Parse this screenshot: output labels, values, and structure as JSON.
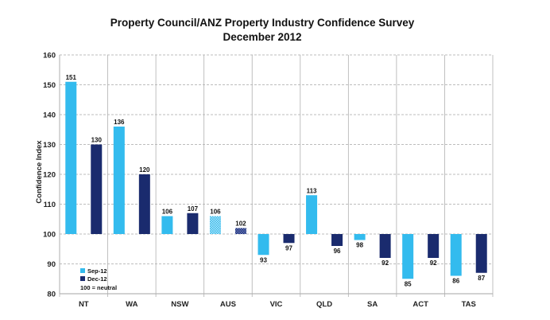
{
  "chart_data": {
    "type": "bar",
    "title": "Property Council/ANZ Property Industry Confidence Survey",
    "subtitle": "December 2012",
    "ylabel": "Confidence Index",
    "xlabel": "",
    "ylim": [
      80,
      160
    ],
    "yticks": [
      "80",
      "90",
      "100",
      "110",
      "120",
      "130",
      "140",
      "150",
      "160"
    ],
    "baseline": 100,
    "grid": true,
    "legend_position": "bottom-left",
    "legend_note": "100 = neutral",
    "categories": [
      "NT",
      "WA",
      "NSW",
      "AUS",
      "VIC",
      "QLD",
      "SA",
      "ACT",
      "TAS"
    ],
    "series": [
      {
        "name": "Sep-12",
        "color": "#33bbee",
        "values": [
          151,
          136,
          106,
          106,
          93,
          113,
          98,
          85,
          86
        ]
      },
      {
        "name": "Dec-12",
        "color": "#1a2b6e",
        "values": [
          130,
          120,
          107,
          102,
          97,
          96,
          92,
          92,
          87
        ]
      }
    ],
    "data_labels": [
      [
        "151",
        "136",
        "106",
        "106",
        "93",
        "113",
        "98",
        "85",
        "86"
      ],
      [
        "130",
        "120",
        "107",
        "102",
        "97",
        "96",
        "92",
        "92",
        "87"
      ]
    ],
    "highlight_category": "AUS"
  }
}
